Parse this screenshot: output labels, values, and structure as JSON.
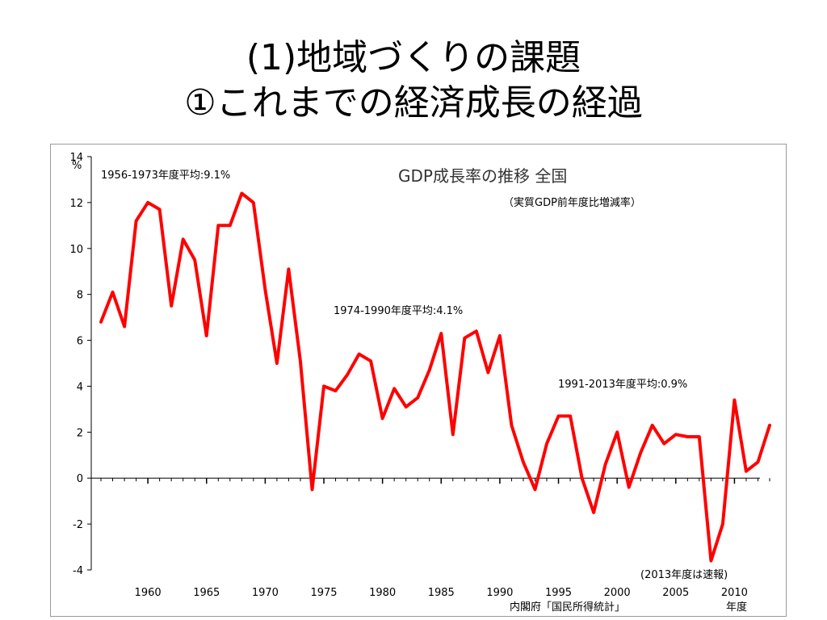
{
  "slide": {
    "title_line1": "(1)地域づくりの課題",
    "title_line2": "①これまでの経済成長の経過"
  },
  "chart_data": {
    "type": "line",
    "title": "GDP成長率の推移  全国",
    "subtitle": "（実質GDP前年度比増減率）",
    "ylabel_unit": "%",
    "xlabel": "年度",
    "source": "内閣府「国民所得統計」",
    "note": "(2013年度は速報)",
    "ylim": [
      -4,
      14
    ],
    "yticks": [
      -4,
      -2,
      0,
      2,
      4,
      6,
      8,
      10,
      12,
      14
    ],
    "xlim": [
      1956,
      2013
    ],
    "xticks": [
      1960,
      1965,
      1970,
      1975,
      1980,
      1985,
      1990,
      1995,
      2000,
      2005,
      2010
    ],
    "grid": false,
    "line_color": "#ff0000",
    "annotations": [
      {
        "text": "1956-1973年度平均:9.1%"
      },
      {
        "text": "1974-1990年度平均:4.1%"
      },
      {
        "text": "1991-2013年度平均:0.9%"
      }
    ],
    "series": [
      {
        "x": [
          1956,
          1957,
          1958,
          1959,
          1960,
          1961,
          1962,
          1963,
          1964,
          1965,
          1966,
          1967,
          1968,
          1969,
          1970,
          1971,
          1972,
          1973,
          1974,
          1975,
          1976,
          1977,
          1978,
          1979,
          1980,
          1981,
          1982,
          1983,
          1984,
          1985,
          1986,
          1987,
          1988,
          1989,
          1990,
          1991,
          1992,
          1993,
          1994,
          1995,
          1996,
          1997,
          1998,
          1999,
          2000,
          2001,
          2002,
          2003,
          2004,
          2005,
          2006,
          2007,
          2008,
          2009,
          2010,
          2011,
          2012,
          2013
        ],
        "values": [
          6.8,
          8.1,
          6.6,
          11.2,
          12.0,
          11.7,
          7.5,
          10.4,
          9.5,
          6.2,
          11.0,
          11.0,
          12.4,
          12.0,
          8.2,
          5.0,
          9.1,
          5.1,
          -0.5,
          4.0,
          3.8,
          4.5,
          5.4,
          5.1,
          2.6,
          3.9,
          3.1,
          3.5,
          4.7,
          6.3,
          1.9,
          6.1,
          6.4,
          4.6,
          6.2,
          2.3,
          0.7,
          -0.5,
          1.5,
          2.7,
          2.7,
          0.0,
          -1.5,
          0.6,
          2.0,
          -0.4,
          1.1,
          2.3,
          1.5,
          1.9,
          1.8,
          1.8,
          -3.6,
          -2.0,
          3.4,
          0.3,
          0.7,
          2.3
        ]
      }
    ]
  }
}
